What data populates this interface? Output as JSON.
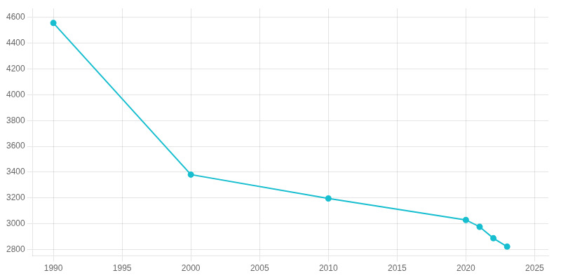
{
  "chart_data": {
    "type": "line",
    "x": [
      1990,
      2000,
      2010,
      2020,
      2021,
      2022,
      2023
    ],
    "values": [
      4557,
      3381,
      3196,
      3029,
      2976,
      2887,
      2822
    ],
    "color": "#17BECF",
    "marker": "circle",
    "xlim": [
      1988.5,
      2026
    ],
    "ylim": [
      2750,
      4670
    ],
    "xticks": [
      1990,
      1995,
      2000,
      2005,
      2010,
      2015,
      2020,
      2025
    ],
    "yticks": [
      2800,
      3000,
      3200,
      3400,
      3600,
      3800,
      4000,
      4200,
      4400,
      4600
    ],
    "grid": true
  }
}
